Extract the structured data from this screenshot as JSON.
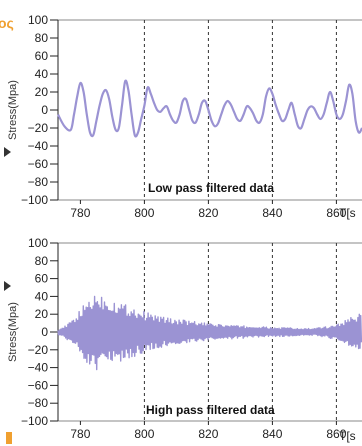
{
  "colors": {
    "signal": "#9b93d3",
    "axis": "#222222",
    "frame": "#888888",
    "grid": "#333333",
    "edge_text": "#f0a030",
    "edge_arrow": "#333333"
  },
  "edge": {
    "top_text": "ος"
  },
  "chart_data": [
    {
      "type": "line",
      "title": "Low pass filtered data",
      "ylabel": "Stress(Mpa)",
      "xlabel_partial": "T[s",
      "xlim": [
        773,
        868
      ],
      "ylim": [
        -100,
        100
      ],
      "x_ticks": [
        "780",
        "800",
        "820",
        "840",
        "860"
      ],
      "y_ticks": [
        "100",
        "80",
        "60",
        "40",
        "20",
        "0",
        "−20",
        "−40",
        "−60",
        "−80",
        "−100"
      ],
      "grid_x": [
        800,
        820,
        840,
        860
      ],
      "grid": "vertical dashed",
      "series": [
        {
          "x": [
            773,
            775,
            777,
            778,
            779,
            780,
            781,
            782,
            783,
            784,
            785,
            786,
            787,
            788,
            789,
            790,
            791,
            792,
            793,
            794,
            795,
            796,
            797,
            798,
            799,
            800,
            801,
            802,
            803,
            804,
            805,
            806,
            807,
            808,
            809,
            810,
            811,
            812,
            813,
            814,
            815,
            816,
            817,
            818,
            819,
            820,
            821,
            822,
            823,
            824,
            825,
            826,
            827,
            828,
            829,
            830,
            831,
            832,
            833,
            834,
            835,
            836,
            837,
            838,
            839,
            840,
            841,
            842,
            843,
            844,
            845,
            846,
            847,
            848,
            849,
            850,
            851,
            852,
            853,
            854,
            855,
            856,
            857,
            858,
            859,
            860,
            861,
            862,
            863,
            864,
            865,
            866,
            867,
            868
          ],
          "values": [
            -5,
            -18,
            -22,
            -5,
            15,
            30,
            20,
            -5,
            -25,
            -28,
            -12,
            5,
            18,
            22,
            12,
            -8,
            -22,
            -20,
            5,
            32,
            22,
            -5,
            -28,
            -25,
            -10,
            5,
            25,
            18,
            8,
            0,
            -2,
            2,
            4,
            -5,
            -12,
            -14,
            -5,
            10,
            12,
            0,
            -12,
            -14,
            -5,
            8,
            10,
            0,
            -12,
            -18,
            -15,
            -5,
            5,
            10,
            6,
            -2,
            -10,
            -12,
            -5,
            4,
            2,
            -4,
            -12,
            -14,
            -5,
            15,
            24,
            18,
            6,
            -4,
            -12,
            -10,
            0,
            8,
            -5,
            -18,
            -20,
            -10,
            0,
            4,
            2,
            -5,
            -10,
            -5,
            8,
            20,
            10,
            -5,
            -10,
            -5,
            10,
            28,
            18,
            -12,
            -25,
            -20
          ]
        }
      ]
    },
    {
      "type": "line",
      "title": "High pass filtered data",
      "ylabel": "Stress(Mpa)",
      "xlabel_partial": "T[s",
      "xlim": [
        773,
        868
      ],
      "ylim": [
        -100,
        100
      ],
      "x_ticks": [
        "780",
        "800",
        "820",
        "840",
        "860"
      ],
      "y_ticks": [
        "100",
        "80",
        "60",
        "40",
        "20",
        "0",
        "−20",
        "−40",
        "−60",
        "−80",
        "−100"
      ],
      "grid_x": [
        800,
        820,
        840,
        860
      ],
      "grid": "vertical dashed",
      "series": [
        {
          "x": [
            773,
            775,
            777,
            779,
            781,
            783,
            785,
            787,
            789,
            791,
            793,
            795,
            797,
            799,
            801,
            803,
            805,
            807,
            809,
            811,
            813,
            815,
            817,
            819,
            821,
            823,
            825,
            827,
            829,
            831,
            833,
            835,
            837,
            839,
            841,
            843,
            845,
            847,
            849,
            851,
            853,
            855,
            857,
            859,
            861,
            863,
            865,
            867
          ],
          "amplitude": [
            3,
            6,
            12,
            20,
            30,
            40,
            45,
            42,
            38,
            36,
            33,
            30,
            28,
            24,
            22,
            20,
            18,
            16,
            15,
            14,
            13,
            12,
            11,
            10,
            9,
            9,
            8,
            8,
            7,
            7,
            6,
            6,
            6,
            5,
            5,
            5,
            5,
            4,
            4,
            4,
            4,
            5,
            6,
            8,
            10,
            14,
            18,
            20
          ]
        }
      ]
    }
  ]
}
